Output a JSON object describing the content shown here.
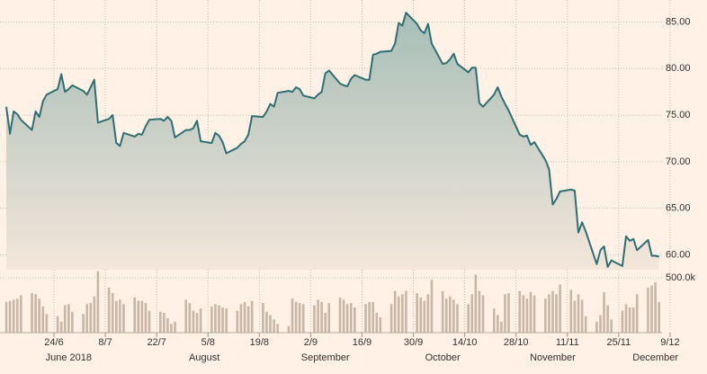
{
  "chart_data": {
    "type": "line",
    "x": [
      "2018-06-11",
      "2018-06-12",
      "2018-06-13",
      "2018-06-14",
      "2018-06-15",
      "2018-06-18",
      "2018-06-19",
      "2018-06-20",
      "2018-06-21",
      "2018-06-22",
      "2018-06-25",
      "2018-06-26",
      "2018-06-27",
      "2018-06-28",
      "2018-06-29",
      "2018-07-02",
      "2018-07-03",
      "2018-07-04",
      "2018-07-05",
      "2018-07-06",
      "2018-07-09",
      "2018-07-10",
      "2018-07-11",
      "2018-07-12",
      "2018-07-13",
      "2018-07-16",
      "2018-07-17",
      "2018-07-18",
      "2018-07-19",
      "2018-07-20",
      "2018-07-23",
      "2018-07-24",
      "2018-07-25",
      "2018-07-26",
      "2018-07-27",
      "2018-07-30",
      "2018-07-31",
      "2018-08-01",
      "2018-08-02",
      "2018-08-03",
      "2018-08-06",
      "2018-08-07",
      "2018-08-08",
      "2018-08-09",
      "2018-08-10",
      "2018-08-13",
      "2018-08-14",
      "2018-08-15",
      "2018-08-16",
      "2018-08-17",
      "2018-08-20",
      "2018-08-21",
      "2018-08-22",
      "2018-08-23",
      "2018-08-24",
      "2018-08-27",
      "2018-08-28",
      "2018-08-29",
      "2018-08-30",
      "2018-08-31",
      "2018-09-03",
      "2018-09-04",
      "2018-09-05",
      "2018-09-06",
      "2018-09-07",
      "2018-09-10",
      "2018-09-11",
      "2018-09-12",
      "2018-09-13",
      "2018-09-14",
      "2018-09-17",
      "2018-09-18",
      "2018-09-19",
      "2018-09-20",
      "2018-09-21",
      "2018-09-24",
      "2018-09-25",
      "2018-09-26",
      "2018-09-27",
      "2018-09-28",
      "2018-10-01",
      "2018-10-02",
      "2018-10-03",
      "2018-10-04",
      "2018-10-05",
      "2018-10-08",
      "2018-10-09",
      "2018-10-10",
      "2018-10-11",
      "2018-10-12",
      "2018-10-15",
      "2018-10-16",
      "2018-10-17",
      "2018-10-18",
      "2018-10-19",
      "2018-10-22",
      "2018-10-23",
      "2018-10-24",
      "2018-10-25",
      "2018-10-26",
      "2018-10-29",
      "2018-10-30",
      "2018-10-31",
      "2018-11-01",
      "2018-11-02",
      "2018-11-05",
      "2018-11-06",
      "2018-11-07",
      "2018-11-08",
      "2018-11-09",
      "2018-11-12",
      "2018-11-13",
      "2018-11-14",
      "2018-11-15",
      "2018-11-16",
      "2018-11-19",
      "2018-11-20",
      "2018-11-21",
      "2018-11-22",
      "2018-11-23",
      "2018-11-26",
      "2018-11-27",
      "2018-11-28",
      "2018-11-29",
      "2018-11-30",
      "2018-12-03",
      "2018-12-04",
      "2018-12-05",
      "2018-12-06"
    ],
    "series": [
      {
        "color": "#2f6f73",
        "values": [
          75.9,
          73.0,
          75.4,
          75.1,
          74.5,
          73.4,
          75.4,
          74.8,
          76.5,
          77.2,
          77.8,
          79.4,
          77.5,
          77.8,
          78.2,
          77.6,
          77.2,
          78.0,
          78.8,
          74.2,
          74.6,
          75.0,
          72.0,
          71.7,
          73.1,
          72.7,
          73.0,
          72.9,
          73.8,
          74.5,
          74.6,
          74.4,
          74.8,
          74.4,
          72.6,
          73.4,
          73.4,
          73.6,
          74.4,
          72.2,
          72.0,
          73.1,
          72.8,
          72.1,
          70.9,
          71.5,
          71.9,
          72.2,
          72.9,
          74.9,
          74.8,
          75.4,
          76.2,
          75.9,
          77.4,
          77.6,
          77.5,
          78.0,
          77.8,
          77.1,
          76.8,
          77.2,
          77.5,
          79.5,
          79.8,
          78.4,
          78.2,
          78.1,
          78.9,
          79.3,
          78.8,
          78.8,
          81.5,
          81.6,
          81.8,
          81.9,
          82.7,
          84.9,
          84.6,
          86.0,
          84.8,
          84.1,
          83.8,
          84.8,
          82.7,
          80.5,
          80.6,
          81.0,
          81.6,
          80.5,
          79.6,
          80.1,
          80.1,
          76.3,
          75.9,
          77.2,
          78.0,
          77.0,
          76.2,
          75.5,
          72.9,
          72.7,
          72.8,
          71.8,
          72.1,
          70.2,
          69.2,
          65.4,
          66.0,
          66.8,
          67.0,
          66.9,
          62.4,
          63.5,
          62.5,
          59.0,
          60.5,
          60.9,
          58.7,
          59.4,
          58.8,
          62.0,
          61.5,
          61.7,
          60.5,
          61.6,
          59.9,
          59.9,
          59.8
        ]
      }
    ],
    "ylim": [
      58.4,
      86.4
    ],
    "yticks": [
      {
        "value": 60,
        "label": "60.00"
      },
      {
        "value": 65,
        "label": "65.00"
      },
      {
        "value": 70,
        "label": "70.00"
      },
      {
        "value": 75,
        "label": "75.00"
      },
      {
        "value": 80,
        "label": "80.00"
      },
      {
        "value": 85,
        "label": "85.00"
      }
    ],
    "volume": {
      "color": "#c8b6a6",
      "values": [
        280000,
        290000,
        300000,
        310000,
        340000,
        360000,
        350000,
        310000,
        240000,
        170000,
        150000,
        100000,
        250000,
        260000,
        190000,
        170000,
        260000,
        270000,
        330000,
        560000,
        410000,
        360000,
        290000,
        300000,
        260000,
        320000,
        290000,
        290000,
        270000,
        200000,
        190000,
        180000,
        130000,
        80000,
        100000,
        300000,
        270000,
        200000,
        180000,
        220000,
        240000,
        260000,
        250000,
        230000,
        220000,
        200000,
        260000,
        280000,
        240000,
        290000,
        270000,
        190000,
        160000,
        120000,
        80000,
        60000,
        310000,
        280000,
        270000,
        260000,
        250000,
        300000,
        280000,
        180000,
        270000,
        320000,
        300000,
        260000,
        270000,
        230000,
        260000,
        280000,
        280000,
        180000,
        140000,
        260000,
        380000,
        330000,
        350000,
        380000,
        360000,
        320000,
        290000,
        350000,
        480000,
        380000,
        310000,
        330000,
        300000,
        260000,
        260000,
        350000,
        530000,
        380000,
        340000,
        220000,
        160000,
        100000,
        350000,
        360000,
        380000,
        340000,
        310000,
        370000,
        340000,
        310000,
        350000,
        380000,
        350000,
        440000,
        390000,
        290000,
        350000,
        300000,
        150000,
        100000,
        160000,
        370000,
        250000,
        120000,
        200000,
        260000,
        230000,
        230000,
        350000,
        410000,
        430000,
        460000,
        280000
      ],
      "ylim": [
        0,
        560000
      ],
      "yticks": [
        {
          "value": 500000,
          "label": "500.0k"
        }
      ]
    },
    "xticks": [
      {
        "value": "2018-06-24",
        "label": "24/6"
      },
      {
        "value": "2018-07-08",
        "label": "8/7"
      },
      {
        "value": "2018-07-22",
        "label": "22/7"
      },
      {
        "value": "2018-08-05",
        "label": "5/8"
      },
      {
        "value": "2018-08-19",
        "label": "19/8"
      },
      {
        "value": "2018-09-02",
        "label": "2/9"
      },
      {
        "value": "2018-09-16",
        "label": "16/9"
      },
      {
        "value": "2018-09-30",
        "label": "30/9"
      },
      {
        "value": "2018-10-14",
        "label": "14/10"
      },
      {
        "value": "2018-10-28",
        "label": "28/10"
      },
      {
        "value": "2018-11-11",
        "label": "11/11"
      },
      {
        "value": "2018-11-25",
        "label": "25/11"
      },
      {
        "value": "2018-12-09",
        "label": "9/12"
      }
    ],
    "months": [
      {
        "value": "2018-06-28",
        "label": "June 2018"
      },
      {
        "value": "2018-08-04",
        "label": "August"
      },
      {
        "value": "2018-09-06",
        "label": "September"
      },
      {
        "value": "2018-10-08",
        "label": "October"
      },
      {
        "value": "2018-11-07",
        "label": "November"
      },
      {
        "value": "2018-12-05",
        "label": "December"
      }
    ],
    "grid": true
  }
}
